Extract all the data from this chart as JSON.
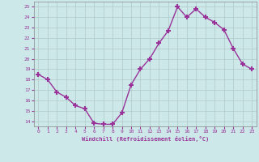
{
  "x": [
    0,
    1,
    2,
    3,
    4,
    5,
    6,
    7,
    8,
    9,
    10,
    11,
    12,
    13,
    14,
    15,
    16,
    17,
    18,
    19,
    20,
    21,
    22,
    23
  ],
  "y": [
    18.5,
    18.0,
    16.8,
    16.3,
    15.5,
    15.2,
    13.8,
    13.7,
    13.7,
    14.8,
    17.5,
    19.0,
    20.0,
    21.5,
    22.7,
    25.0,
    24.0,
    24.8,
    24.0,
    23.5,
    22.8,
    21.0,
    19.5,
    19.0
  ],
  "line_color": "#993399",
  "marker": "+",
  "marker_size": 4,
  "bg_color": "#cce8e8",
  "grid_color": "#b0c8c8",
  "xlabel": "Windchill (Refroidissement éolien,°C)",
  "ylabel_ticks": [
    14,
    15,
    16,
    17,
    18,
    19,
    20,
    21,
    22,
    23,
    24,
    25
  ],
  "xticks": [
    0,
    1,
    2,
    3,
    4,
    5,
    6,
    7,
    8,
    9,
    10,
    11,
    12,
    13,
    14,
    15,
    16,
    17,
    18,
    19,
    20,
    21,
    22,
    23
  ],
  "ylim": [
    13.5,
    25.5
  ],
  "xlim": [
    -0.5,
    23.5
  ],
  "font_color": "#993399"
}
